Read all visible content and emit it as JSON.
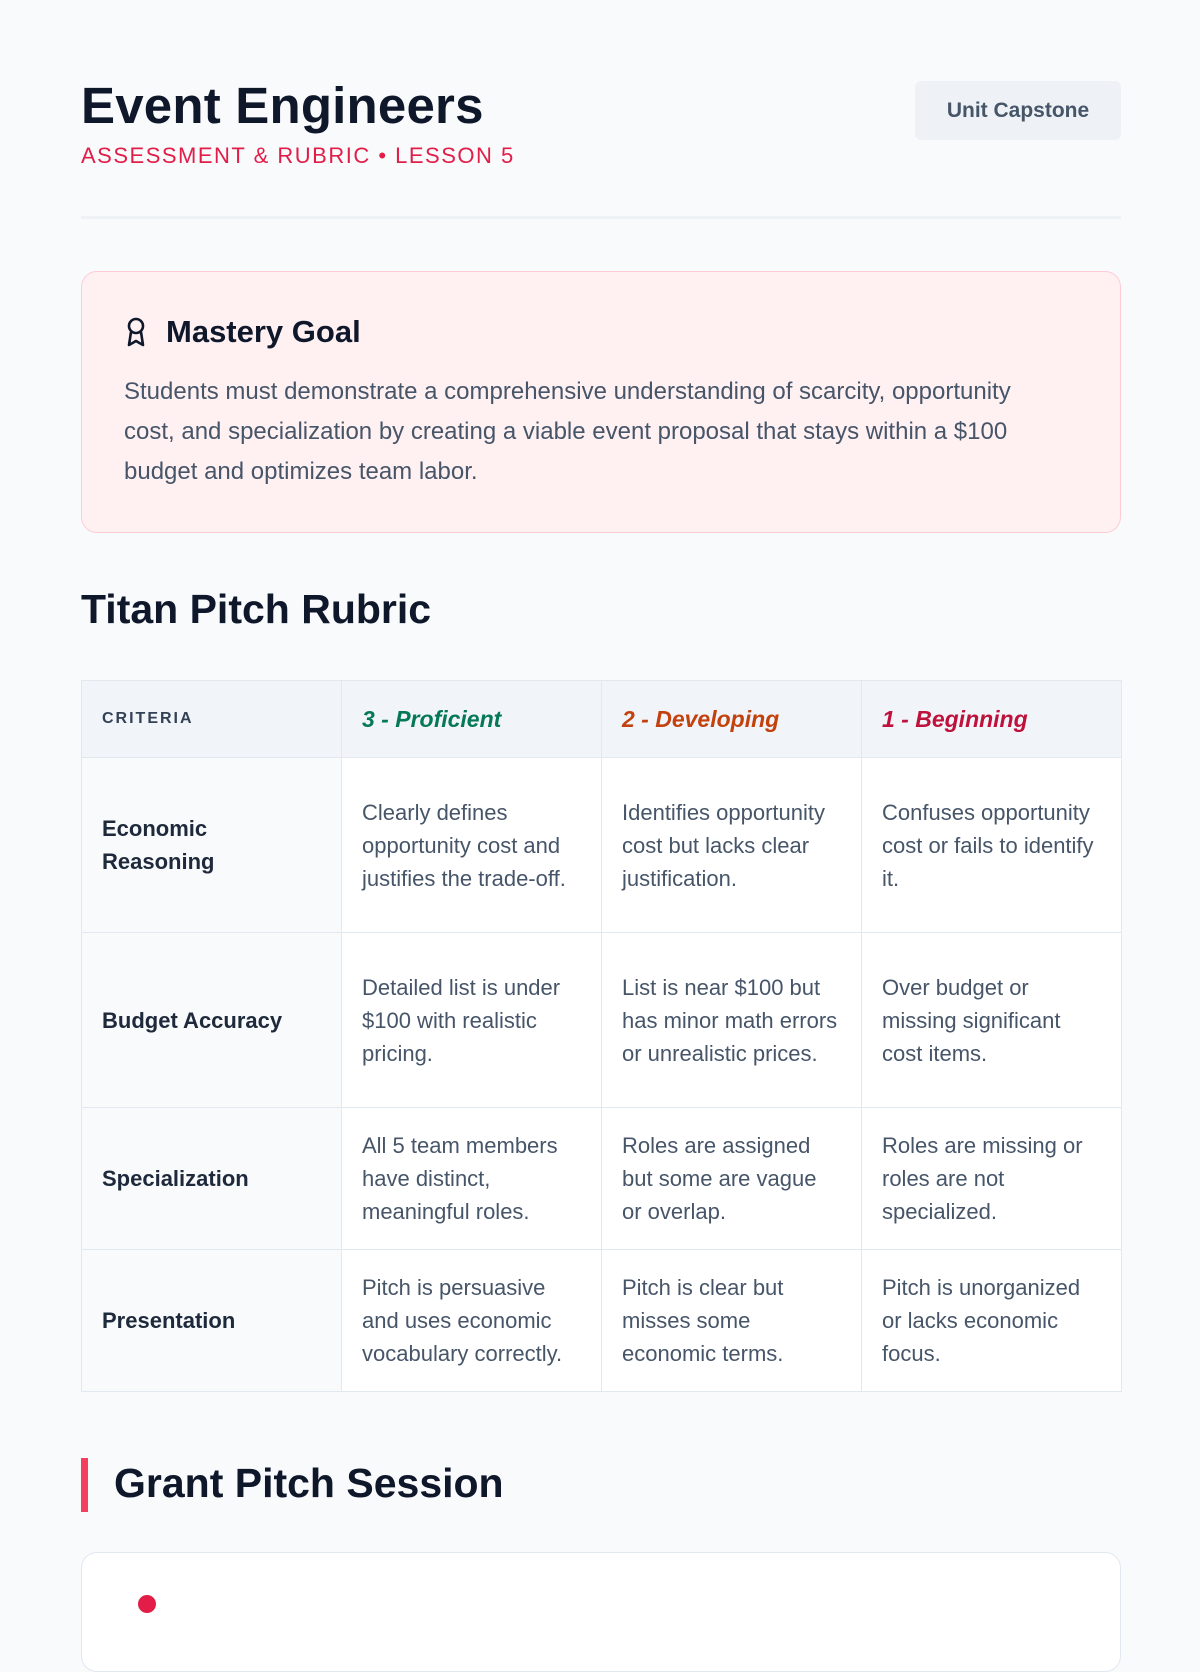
{
  "header": {
    "title": "Event Engineers",
    "subtitle": "ASSESSMENT & RUBRIC • LESSON 5",
    "badge": "Unit Capstone"
  },
  "mastery_goal": {
    "icon": "award-ribbon-icon",
    "title": "Mastery Goal",
    "text": "Students must demonstrate a comprehensive understanding of scarcity, opportunity cost, and specialization by creating a viable event proposal that stays within a $100 budget and optimizes team labor."
  },
  "rubric": {
    "heading": "Titan Pitch Rubric",
    "columns": {
      "criteria": "CRITERIA",
      "proficient": "3 - Proficient",
      "developing": "2 - Developing",
      "beginning": "1 - Beginning"
    },
    "colors": {
      "proficient": "#047857",
      "developing": "#c2410c",
      "beginning": "#be123c"
    },
    "rows": [
      {
        "criterion": "Economic Reasoning",
        "proficient": "Clearly defines opportunity cost and justifies the trade-off.",
        "developing": "Identifies opportunity cost but lacks clear justification.",
        "beginning": "Confuses opportunity cost or fails to identify it."
      },
      {
        "criterion": "Budget Accuracy",
        "proficient": "Detailed list is under $100 with realistic pricing.",
        "developing": "List is near $100 but has minor math errors or unrealistic prices.",
        "beginning": "Over budget or missing significant cost items."
      },
      {
        "criterion": "Specialization",
        "proficient": "All 5 team members have distinct, meaningful roles.",
        "developing": "Roles are assigned but some are vague or overlap.",
        "beginning": "Roles are missing or roles are not specialized."
      },
      {
        "criterion": "Presentation",
        "proficient": "Pitch is persuasive and uses economic vocabulary correctly.",
        "developing": "Pitch is clear but misses some economic terms.",
        "beginning": "Pitch is unorganized or lacks economic focus."
      }
    ]
  },
  "grant_session": {
    "heading": "Grant Pitch Session",
    "accent_color": "#f43f5e"
  }
}
